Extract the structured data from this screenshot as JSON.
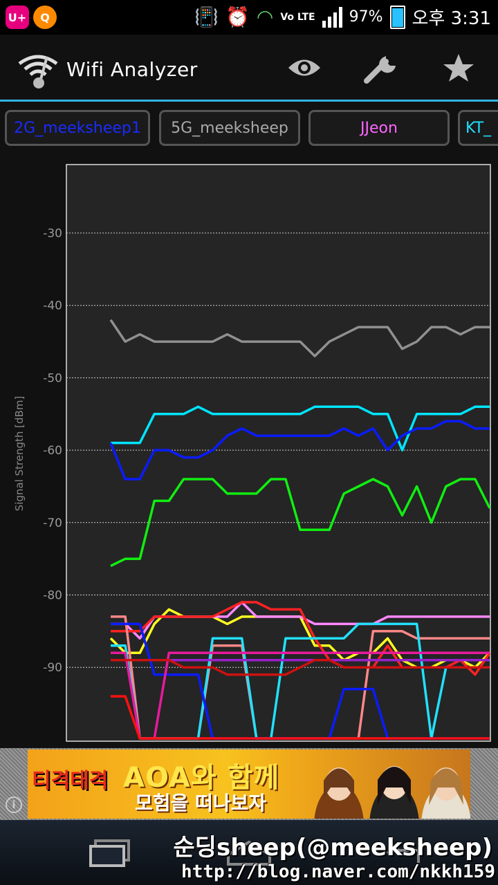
{
  "status_bar": {
    "battery": "97%",
    "time": "오후 3:31",
    "network_badge": "Vo LTE",
    "left_badges": [
      "U+",
      "Q"
    ],
    "icons": [
      "vibrate-icon",
      "alarm-icon",
      "wifi-icon",
      "signal-icon",
      "battery-icon"
    ]
  },
  "app": {
    "title": "Wifi Analyzer",
    "actions": [
      "eye-icon",
      "wrench-icon",
      "star-icon"
    ]
  },
  "tabs": [
    {
      "label": "2G_meeksheep1",
      "color": "#1a2bff"
    },
    {
      "label": "5G_meeksheep",
      "color": "#aaaaaa"
    },
    {
      "label": "JJeon",
      "color": "#ff66ff"
    },
    {
      "label": "KT_",
      "color": "#22e0ff"
    }
  ],
  "chart_data": {
    "type": "line",
    "ylabel": "Signal Strength [dBm]",
    "yticks": [
      -30,
      -40,
      -50,
      -60,
      -70,
      -80,
      -90
    ],
    "ylim": [
      -100,
      -20
    ],
    "grid": true,
    "x": [
      0,
      1,
      2,
      3,
      4,
      5,
      6,
      7,
      8,
      9,
      10,
      11,
      12,
      13,
      14,
      15,
      16,
      17,
      18,
      19,
      20,
      21,
      22,
      23,
      24,
      25,
      26
    ],
    "series": [
      {
        "color": "#909090",
        "values": [
          -42,
          -45,
          -44,
          -45,
          -45,
          -45,
          -45,
          -45,
          -44,
          -45,
          -45,
          -45,
          -45,
          -45,
          -47,
          -45,
          -44,
          -43,
          -43,
          -43,
          -46,
          -45,
          -43,
          -43,
          -44,
          -43,
          -43
        ]
      },
      {
        "color": "#00e5ff",
        "values": [
          -59,
          -59,
          -59,
          -55,
          -55,
          -55,
          -54,
          -55,
          -55,
          -55,
          -55,
          -55,
          -55,
          -55,
          -54,
          -54,
          -54,
          -54,
          -55,
          -55,
          -60,
          -55,
          -55,
          -55,
          -55,
          -54,
          -54
        ]
      },
      {
        "color": "#0a1cff",
        "values": [
          -59,
          -64,
          -64,
          -60,
          -60,
          -61,
          -61,
          -60,
          -58,
          -57,
          -58,
          -58,
          -58,
          -58,
          -58,
          -58,
          -57,
          -58,
          -57,
          -60,
          -58,
          -57,
          -57,
          -56,
          -56,
          -57,
          -57
        ]
      },
      {
        "color": "#11ee11",
        "values": [
          -76,
          -75,
          -75,
          -67,
          -67,
          -64,
          -64,
          -64,
          -66,
          -66,
          -66,
          -64,
          -64,
          -71,
          -71,
          -71,
          -66,
          -65,
          -64,
          -65,
          -69,
          -65,
          -70,
          -65,
          -64,
          -64,
          -68
        ]
      },
      {
        "color": "#ffff22",
        "values": [
          -86,
          -88,
          -88,
          -84,
          -82,
          -83,
          -83,
          -83,
          -84,
          -83,
          -83,
          -83,
          -83,
          -83,
          -87,
          -87,
          -89,
          -88,
          -88,
          -86,
          -89,
          -90,
          -90,
          -89,
          -89,
          -90,
          -88
        ]
      },
      {
        "color": "#ff88ff",
        "values": [
          -84,
          -84,
          -86,
          -83,
          -83,
          -83,
          -83,
          -83,
          -83,
          -81,
          -83,
          -83,
          -83,
          -83,
          -84,
          -84,
          -84,
          -84,
          -84,
          -83,
          -83,
          -83,
          -83,
          -83,
          -83,
          -83,
          -83
        ]
      },
      {
        "color": "#ff2222",
        "values": [
          -85,
          -85,
          -85,
          -83,
          -83,
          -83,
          -83,
          -83,
          -82,
          -81,
          -81,
          -82,
          -82,
          -82,
          -86,
          -89,
          -90,
          -90,
          -90,
          -87,
          -90,
          -90,
          -90,
          -90,
          -89,
          -91,
          -88
        ]
      },
      {
        "color": "#ff8888",
        "values": [
          -83,
          -83,
          -100,
          -100,
          -100,
          -100,
          -100,
          -87,
          -87,
          -87,
          -100,
          -100,
          -100,
          -100,
          -100,
          -100,
          -100,
          -100,
          -85,
          -85,
          -85,
          -86,
          -86,
          -86,
          -86,
          -86,
          -86
        ]
      },
      {
        "color": "#22e0ff",
        "values": [
          -87,
          -87,
          -100,
          -100,
          -100,
          -100,
          -100,
          -86,
          -86,
          -86,
          -100,
          -100,
          -86,
          -86,
          -86,
          -86,
          -86,
          -84,
          -84,
          -84,
          -84,
          -84,
          -100,
          -90,
          -90,
          -90,
          -90
        ]
      },
      {
        "color": "#0a1cff",
        "values": [
          -84,
          -84,
          -84,
          -91,
          -91,
          -91,
          -91,
          -100,
          -100,
          -100,
          -100,
          -100,
          -100,
          -100,
          -100,
          -100,
          -93,
          -93,
          -93,
          -100,
          -100,
          -100,
          -100,
          -100,
          -100,
          -100,
          -100
        ]
      },
      {
        "color": "#e81a9c",
        "values": [
          -88,
          -88,
          -100,
          -100,
          -88,
          -88,
          -88,
          -88,
          -88,
          -88,
          -88,
          -88,
          -88,
          -88,
          -88,
          -88,
          -88,
          -88,
          -88,
          -88,
          -88,
          -88,
          -88,
          -88,
          -88,
          -88,
          -88
        ]
      },
      {
        "color": "#9922cc",
        "values": [
          -89,
          -89,
          -89,
          -89,
          -89,
          -89,
          -89,
          -89,
          -89,
          -89,
          -89,
          -89,
          -89,
          -89,
          -89,
          -89,
          -89,
          -89,
          -89,
          -89,
          -89,
          -89,
          -89,
          -89,
          -89,
          -89,
          -89
        ]
      },
      {
        "color": "#ff1111",
        "values": [
          -94,
          -94,
          -100,
          -100,
          -100,
          -100,
          -100,
          -100,
          -100,
          -100,
          -100,
          -100,
          -100,
          -100,
          -100,
          -100,
          -100,
          -100,
          -100,
          -100,
          -100,
          -100,
          -100,
          -100,
          -100,
          -100,
          -100
        ]
      },
      {
        "color": "#cc1111",
        "values": [
          -89,
          -89,
          -89,
          -89,
          -89,
          -90,
          -90,
          -90,
          -91,
          -91,
          -91,
          -91,
          -91,
          -90,
          -89,
          -89,
          -90,
          -90,
          -90,
          -90,
          -90,
          -90,
          -90,
          -90,
          -90,
          -90,
          -90
        ]
      }
    ]
  },
  "ad": {
    "logo": "티격태격",
    "headline": "AOA와 함께",
    "subline": "모험을 떠나보자"
  },
  "watermark": {
    "line1": "순딩sheep(@meeksheep)",
    "line2": "http://blog.naver.com/nkkh159"
  }
}
